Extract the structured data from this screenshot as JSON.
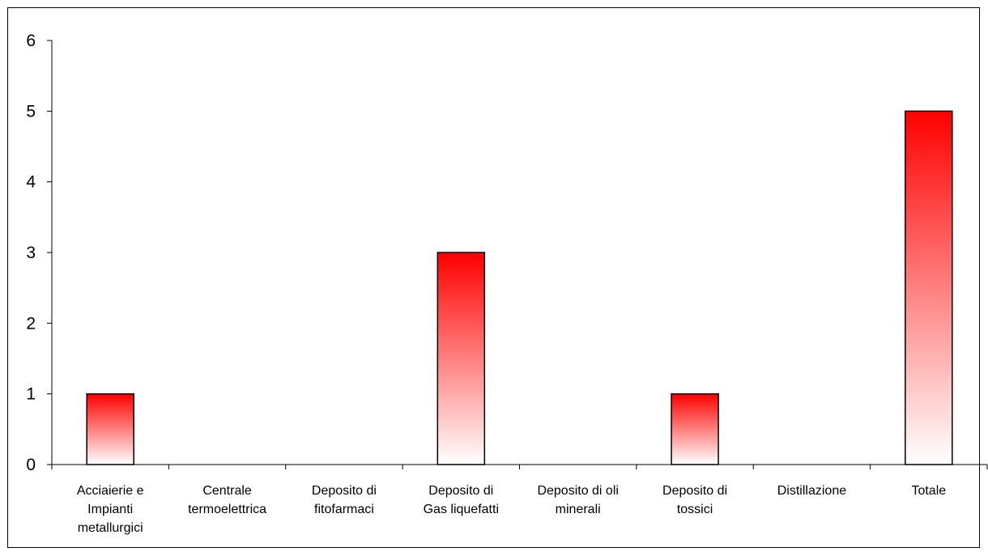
{
  "chart_data": {
    "type": "bar",
    "title": "",
    "xlabel": "",
    "ylabel": "",
    "categories": [
      "Acciaierie e Impianti metallurgici",
      "Centrale termoelettrica",
      "Deposito di fitofarmaci",
      "Deposito di Gas liquefatti",
      "Deposito di oli minerali",
      "Deposito di tossici",
      "Distillazione",
      "Totale"
    ],
    "category_label_lines": [
      [
        "Acciaierie e",
        "Impianti",
        "metallurgici"
      ],
      [
        "Centrale",
        "termoelettrica"
      ],
      [
        "Deposito di",
        "fitofarmaci"
      ],
      [
        "Deposito di",
        "Gas liquefatti"
      ],
      [
        "Deposito di oli",
        "minerali"
      ],
      [
        "Deposito di",
        "tossici"
      ],
      [
        "Distillazione"
      ],
      [
        "Totale"
      ]
    ],
    "values": [
      1,
      0,
      0,
      3,
      0,
      1,
      0,
      5
    ],
    "ylim": [
      0,
      6
    ],
    "yticks": [
      0,
      1,
      2,
      3,
      4,
      5,
      6
    ],
    "grid": false,
    "legend": false,
    "bar_gradient": {
      "top_color": "#ff0000",
      "bottom_color": "#ffffff"
    },
    "bar_outline_color": "#000000"
  }
}
